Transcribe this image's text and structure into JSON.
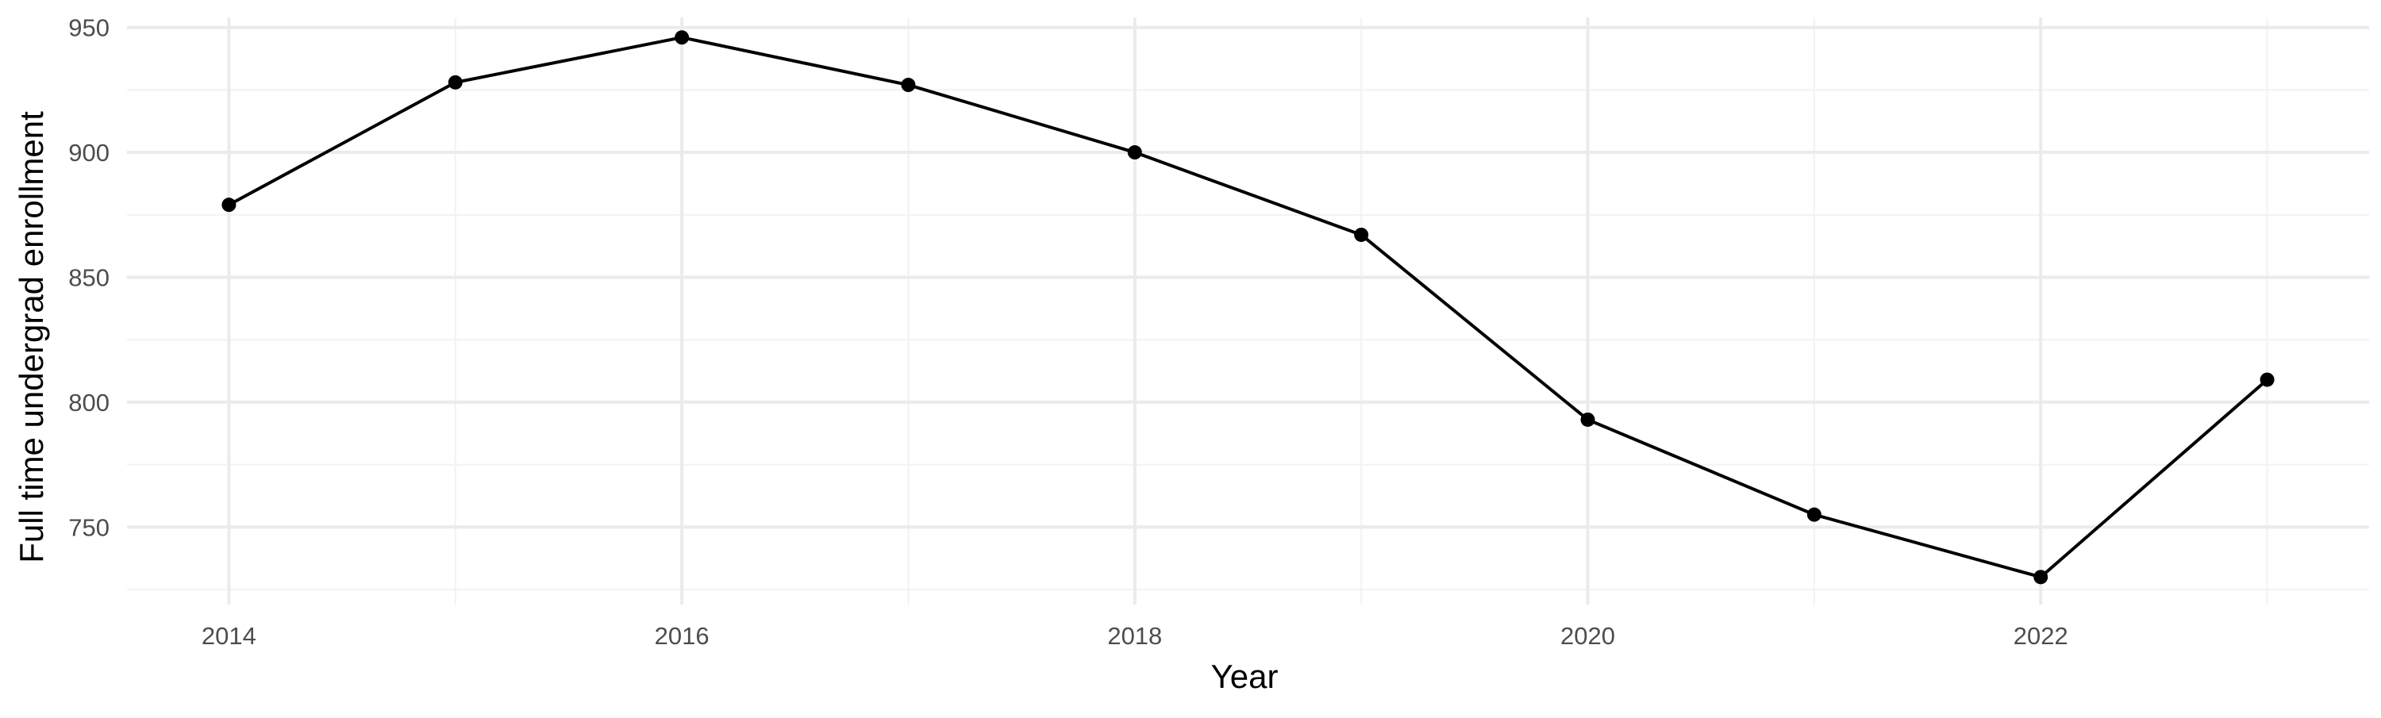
{
  "chart_data": {
    "type": "line",
    "title": "",
    "xlabel": "Year",
    "ylabel": "Full time undergrad enrollment",
    "x": [
      2014,
      2015,
      2016,
      2017,
      2018,
      2019,
      2020,
      2021,
      2022,
      2023
    ],
    "series": [
      {
        "values": [
          879,
          928,
          946,
          927,
          900,
          867,
          793,
          755,
          730,
          809
        ]
      }
    ],
    "xlim": [
      2013.55,
      2023.45
    ],
    "ylim": [
      719,
      954
    ],
    "x_ticks": [
      "2014",
      "2016",
      "2018",
      "2020",
      "2022"
    ],
    "y_ticks": [
      "750",
      "800",
      "850",
      "900",
      "950"
    ],
    "grid": true,
    "legend": "none",
    "colors": {
      "line": "#000000",
      "points": "#000000",
      "grid_major": "#ebebeb",
      "grid_minor": "#f2f2f2",
      "tick_text": "#4d4d4d",
      "background": "#ffffff"
    }
  }
}
